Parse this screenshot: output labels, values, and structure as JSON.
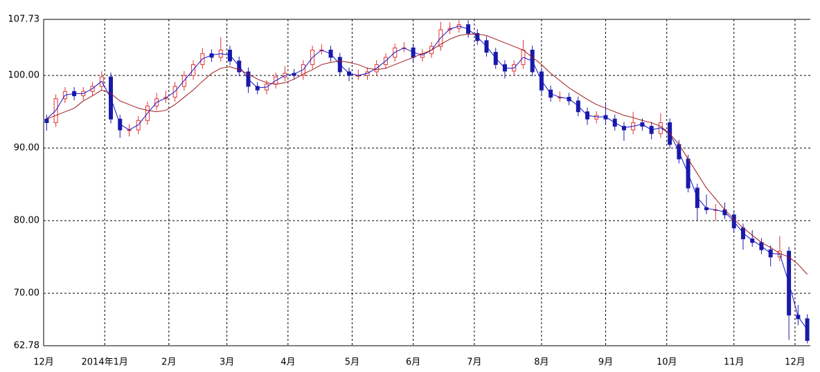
{
  "chart_data": {
    "type": "candlestick",
    "xlim": [
      0,
      251
    ],
    "xticks": [
      {
        "value": 0,
        "label": "12月"
      },
      {
        "value": 20,
        "label": "2014年1月"
      },
      {
        "value": 41,
        "label": "2月"
      },
      {
        "value": 60,
        "label": "3月"
      },
      {
        "value": 80,
        "label": "4月"
      },
      {
        "value": 101,
        "label": "5月"
      },
      {
        "value": 121,
        "label": "6月"
      },
      {
        "value": 141,
        "label": "7月"
      },
      {
        "value": 163,
        "label": "8月"
      },
      {
        "value": 184,
        "label": "9月"
      },
      {
        "value": 204,
        "label": "10月"
      },
      {
        "value": 226,
        "label": "11月"
      },
      {
        "value": 246,
        "label": "12月"
      }
    ],
    "ylim": [
      62.78,
      107.73
    ],
    "yticks": [
      62.78,
      {
        "value": 70,
        "label": "70.00"
      },
      {
        "value": 80,
        "label": "80.00"
      },
      {
        "value": 90,
        "label": "90.00"
      },
      {
        "value": 100,
        "label": "100.00"
      },
      107.73
    ],
    "grid": true,
    "up_color": "#e03030",
    "down_color": "#1a1aa8",
    "x": [
      1,
      4,
      7,
      10,
      13,
      16,
      19,
      22,
      25,
      28,
      31,
      34,
      37,
      40,
      43,
      46,
      49,
      52,
      55,
      58,
      61,
      64,
      67,
      70,
      73,
      76,
      79,
      82,
      85,
      88,
      91,
      94,
      97,
      100,
      103,
      106,
      109,
      112,
      115,
      118,
      121,
      124,
      127,
      130,
      133,
      136,
      139,
      142,
      145,
      148,
      151,
      154,
      157,
      160,
      163,
      166,
      169,
      172,
      175,
      178,
      181,
      184,
      187,
      190,
      193,
      196,
      199,
      202,
      205,
      208,
      211,
      214,
      217,
      220,
      223,
      226,
      229,
      232,
      235,
      238,
      241,
      244,
      247,
      250
    ],
    "open": [
      94,
      93.5,
      96.8,
      97.8,
      97.2,
      97.8,
      98.5,
      99.8,
      94,
      92.5,
      92.5,
      93.8,
      95.8,
      96.8,
      97,
      98.5,
      100,
      101.5,
      103,
      102.5,
      103.5,
      102,
      100.5,
      98.5,
      98,
      98.8,
      99.8,
      100.3,
      100,
      101.5,
      103.5,
      103.5,
      102.5,
      100.5,
      100,
      100,
      100.5,
      101.5,
      102.5,
      103.8,
      103.8,
      102.5,
      103,
      104,
      106.3,
      106.5,
      107,
      105.8,
      104.8,
      103.2,
      101.5,
      100.6,
      101.5,
      103.5,
      100.5,
      98,
      97,
      97,
      96.5,
      95,
      94,
      94.5,
      94,
      93,
      92.5,
      93.5,
      93,
      92,
      93.5,
      90.5,
      88.5,
      84.5,
      81.8,
      81.5,
      81.5,
      80.8,
      79,
      77.5,
      77,
      76,
      75,
      75.8,
      67,
      66.5
    ],
    "high": [
      94.6,
      97.4,
      98.4,
      98.4,
      98.4,
      99.1,
      100.6,
      100.4,
      94.6,
      93.3,
      94.4,
      96.4,
      97.6,
      97.9,
      99.1,
      100.6,
      102.1,
      103.8,
      103.6,
      105.3,
      104.1,
      102.6,
      101.1,
      99.1,
      99.4,
      100.4,
      101.3,
      100.9,
      102.1,
      104.1,
      104.3,
      104.1,
      103.1,
      101.1,
      100.8,
      101.1,
      102.1,
      103.1,
      104.4,
      104.6,
      104.4,
      103.6,
      104.6,
      107.4,
      107.3,
      107.6,
      107.6,
      106.4,
      105.4,
      103.8,
      102.1,
      102.1,
      104.9,
      104.1,
      101.1,
      98.6,
      97.8,
      97.6,
      97.1,
      95.6,
      95.1,
      96,
      94.6,
      93.6,
      95,
      94.1,
      93.6,
      94.8,
      94.1,
      91.1,
      89.1,
      85.1,
      83.6,
      82.3,
      82.5,
      81.4,
      79.6,
      78.7,
      77.6,
      76.6,
      77.9,
      76.4,
      68.4,
      67.1
    ],
    "low": [
      92.4,
      92.9,
      96.2,
      96.6,
      96.6,
      97.2,
      97.9,
      93.4,
      91.4,
      91.6,
      91.9,
      93.2,
      95.2,
      96.2,
      96.4,
      97.9,
      99.4,
      100.9,
      101.9,
      101.9,
      101.4,
      99.9,
      97.6,
      97.4,
      97.4,
      98.2,
      99.2,
      99.4,
      99.4,
      100.9,
      102.9,
      101.9,
      99.9,
      99.2,
      99.4,
      99.4,
      99.9,
      100.9,
      101.9,
      103.2,
      101.9,
      101.9,
      102.4,
      103.4,
      105.7,
      105.9,
      105.2,
      104.2,
      102.6,
      100.9,
      99.6,
      100,
      100.9,
      99.9,
      97.4,
      96.4,
      96.4,
      95.9,
      94.4,
      93.2,
      93.4,
      93.4,
      92.4,
      91,
      91.9,
      92.4,
      91.2,
      91.4,
      89.9,
      87.9,
      83.9,
      80,
      80.9,
      80,
      80.2,
      78.4,
      76,
      76.4,
      75.4,
      73.7,
      74.4,
      63.6,
      65.6,
      63.1
    ],
    "close": [
      93.5,
      96.8,
      97.8,
      97.2,
      97.8,
      98.5,
      99.8,
      94,
      92.5,
      92.5,
      93.8,
      95.8,
      96.8,
      97,
      98.5,
      100,
      101.5,
      103,
      102.5,
      103.5,
      102,
      100.5,
      98.5,
      98,
      98.8,
      99.8,
      100.3,
      100,
      101.5,
      103.5,
      103.5,
      102.5,
      100.5,
      100,
      100,
      100.5,
      101.5,
      102.5,
      103.8,
      103.8,
      102.5,
      103,
      104,
      106.3,
      106.5,
      107,
      105.8,
      104.8,
      103.2,
      101.5,
      100.6,
      101.5,
      103.5,
      100.5,
      98,
      97,
      97,
      96.5,
      95,
      94,
      94.5,
      94,
      93,
      92.5,
      93.5,
      93,
      92,
      93.5,
      90.5,
      88.5,
      84.5,
      81.8,
      81.5,
      81.5,
      80.8,
      79,
      77.5,
      77,
      76,
      75,
      75.8,
      67,
      66.5,
      63.5
    ],
    "lines": [
      {
        "color": "#1010c8",
        "values": [
          94,
          95.2,
          97.3,
          97.5,
          97.5,
          98.2,
          99.2,
          96.9,
          93.3,
          92.5,
          93.2,
          94.8,
          96.3,
          96.9,
          97.8,
          99.3,
          100.8,
          102.3,
          102.8,
          103,
          102.8,
          101.3,
          99.5,
          98.3,
          98.4,
          99.3,
          100,
          100.2,
          100.8,
          102.5,
          103.5,
          103,
          101.5,
          100.3,
          100,
          100.3,
          101,
          102,
          103.2,
          103.8,
          103.2,
          102.8,
          103.5,
          105.2,
          106.4,
          106.8,
          106.4,
          105.3,
          104,
          102.4,
          101,
          101,
          102.5,
          102,
          99.3,
          97.5,
          97,
          96.8,
          95.8,
          94.5,
          94.3,
          94.3,
          93.5,
          92.8,
          93,
          93.3,
          92.5,
          92.8,
          92,
          89.5,
          86.5,
          83.2,
          81.7,
          81.5,
          81.2,
          79.9,
          78.3,
          77.3,
          76.5,
          75.5,
          75.4,
          71.4,
          66.8,
          65
        ]
      },
      {
        "color": "#a01818",
        "values": [
          94,
          94.5,
          95,
          95.5,
          96.5,
          97.2,
          98,
          97.5,
          96.5,
          96,
          95.5,
          95.2,
          95,
          95.2,
          96,
          97,
          98,
          99.2,
          100.3,
          101,
          101.2,
          100.8,
          100.2,
          99.5,
          99,
          98.8,
          99,
          99.5,
          100.2,
          100.8,
          101.5,
          101.8,
          102,
          101.8,
          101.5,
          101,
          100.8,
          101,
          101.5,
          102,
          102.5,
          103,
          103.5,
          104.3,
          105,
          105.5,
          105.7,
          105.7,
          105.5,
          105,
          104.5,
          104,
          103.5,
          102.5,
          101.5,
          100.3,
          99.3,
          98.3,
          97.5,
          96.7,
          96,
          95.5,
          95,
          94.5,
          94.2,
          93.8,
          93.5,
          93,
          92,
          90.5,
          88.5,
          86.5,
          84.5,
          83,
          81.5,
          80.2,
          79,
          78,
          77,
          76.3,
          75.5,
          75,
          74,
          72.6
        ]
      }
    ]
  }
}
